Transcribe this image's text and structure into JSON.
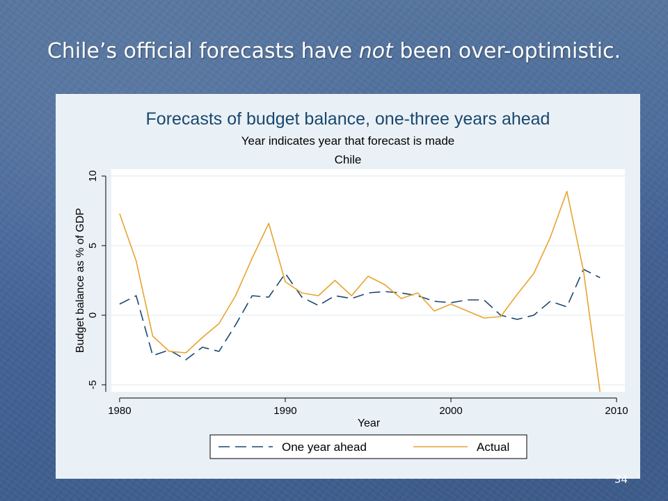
{
  "slide": {
    "title_before": "Chile’s official forecasts have ",
    "title_emphasis": "not",
    "title_after": " been over-optimistic.",
    "page_number": "34"
  },
  "chart_data": {
    "type": "line",
    "title": "Forecasts of budget balance, one-three years ahead",
    "subtitle": "Year indicates year that forecast is made",
    "subtitle2": "Chile",
    "xlabel": "Year",
    "ylabel": "Budget balance as % of GDP",
    "xlim": [
      1979.5,
      2010.5
    ],
    "ylim": [
      -5.5,
      10.5
    ],
    "x_ticks": [
      1980,
      1990,
      2000,
      2010
    ],
    "y_ticks": [
      -5,
      0,
      5,
      10
    ],
    "grid": true,
    "legend_position": "bottom",
    "colors": {
      "one_year_ahead": "#1a476f",
      "actual": "#e8a32e",
      "plot_bg": "#ffffff",
      "panel_bg": "#eaf1f6",
      "grid": "#eaf1f6"
    },
    "series": [
      {
        "name": "One year ahead",
        "style": "dashed",
        "x": [
          1980,
          1981,
          1982,
          1983,
          1984,
          1985,
          1986,
          1987,
          1988,
          1989,
          1990,
          1991,
          1992,
          1993,
          1994,
          1995,
          1996,
          1997,
          1998,
          1999,
          2000,
          2001,
          2002,
          2003,
          2004,
          2005,
          2006,
          2007,
          2008,
          2009
        ],
        "values": [
          0.8,
          1.4,
          -2.9,
          -2.5,
          -3.2,
          -2.3,
          -2.6,
          -0.7,
          1.4,
          1.3,
          3.0,
          1.3,
          0.7,
          1.4,
          1.2,
          1.6,
          1.7,
          1.6,
          1.4,
          1.0,
          0.9,
          1.1,
          1.1,
          0.0,
          -0.3,
          0.0,
          1.0,
          0.6,
          3.3,
          2.7
        ]
      },
      {
        "name": "Actual",
        "style": "solid",
        "x": [
          1980,
          1981,
          1982,
          1983,
          1984,
          1985,
          1986,
          1987,
          1988,
          1989,
          1990,
          1991,
          1992,
          1993,
          1994,
          1995,
          1996,
          1997,
          1998,
          1999,
          2000,
          2001,
          2002,
          2003,
          2004,
          2005,
          2006,
          2007,
          2008,
          2009
        ],
        "values": [
          7.3,
          3.9,
          -1.5,
          -2.6,
          -2.7,
          -1.6,
          -0.6,
          1.4,
          4.1,
          6.6,
          2.4,
          1.6,
          1.4,
          2.5,
          1.4,
          2.8,
          2.2,
          1.2,
          1.6,
          0.3,
          0.8,
          0.3,
          -0.2,
          -0.1,
          1.5,
          3.0,
          5.6,
          8.9,
          3.2,
          -5.5
        ]
      }
    ]
  }
}
